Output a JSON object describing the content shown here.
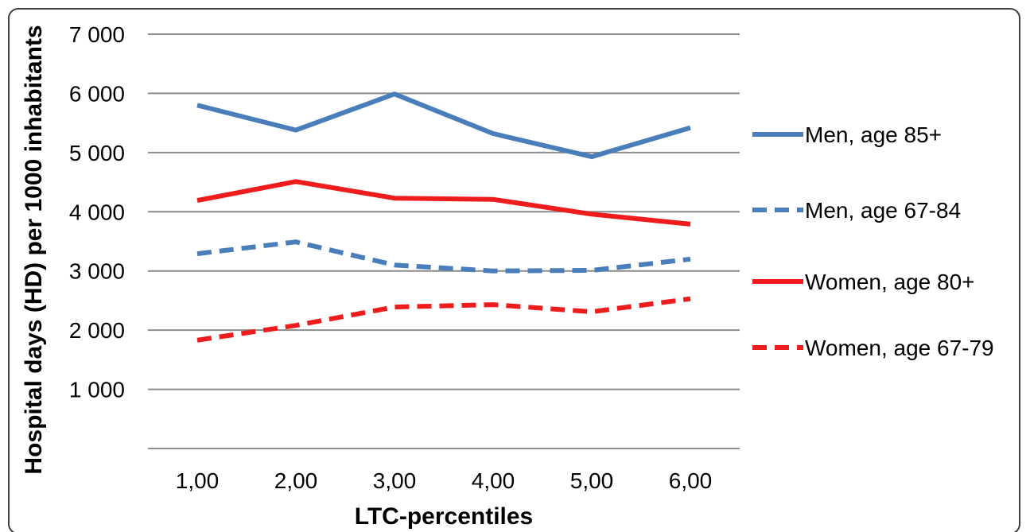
{
  "chart_data": {
    "type": "line",
    "xlabel": "LTC-percentiles",
    "ylabel": "Hospital days (HD)  per 1000 inhabitants",
    "ylim": [
      0,
      7000
    ],
    "yticks": [
      {
        "value": 1000,
        "label": "1 000"
      },
      {
        "value": 2000,
        "label": "2 000"
      },
      {
        "value": 3000,
        "label": "3 000"
      },
      {
        "value": 4000,
        "label": "4 000"
      },
      {
        "value": 5000,
        "label": "5 000"
      },
      {
        "value": 6000,
        "label": "6 000"
      },
      {
        "value": 7000,
        "label": "7 000"
      }
    ],
    "categories": [
      "1,00",
      "2,00",
      "3,00",
      "4,00",
      "5,00",
      "6,00"
    ],
    "grid": true,
    "legend_position": "right",
    "series": [
      {
        "name": "Men, age 85+",
        "color": "#4a7ebb",
        "dash": "solid",
        "values": [
          5800,
          5380,
          5990,
          5320,
          4930,
          5420
        ]
      },
      {
        "name": "Men, age 67-84",
        "color": "#4a7ebb",
        "dash": "dashed",
        "values": [
          3290,
          3490,
          3100,
          3000,
          3010,
          3200
        ]
      },
      {
        "name": "Women, age 80+",
        "color": "#ee1c1c",
        "dash": "solid",
        "values": [
          4190,
          4510,
          4230,
          4210,
          3960,
          3790
        ]
      },
      {
        "name": "Women, age 67-79",
        "color": "#ee1c1c",
        "dash": "dashed",
        "values": [
          1830,
          2080,
          2390,
          2430,
          2310,
          2530
        ]
      }
    ]
  }
}
